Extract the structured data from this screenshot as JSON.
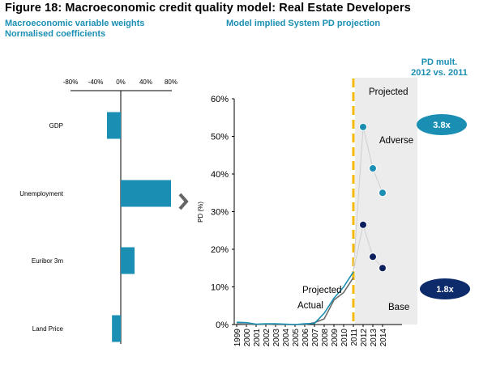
{
  "figure": {
    "title": "Figure 18: Macroeconomic credit quality model: Real Estate Developers",
    "left_subtitle_1": "Macroeconomic variable weights",
    "left_subtitle_2": "Normalised coefficients",
    "right_subtitle": "Model implied System PD projection",
    "pd_mult_line1": "PD mult.",
    "pd_mult_line2": "2012 vs. 2011"
  },
  "chart_data": [
    {
      "type": "bar",
      "orientation": "horizontal",
      "categories": [
        "GDP",
        "Unemployment",
        "Euribor 3m",
        "Land Price"
      ],
      "values": [
        -22,
        80,
        22,
        -14
      ],
      "xlim": [
        -80,
        80
      ],
      "xticks": [
        "-80%",
        "-40%",
        "0%",
        "40%",
        "80%"
      ],
      "xtick_values": [
        -80,
        -40,
        0,
        40,
        80
      ],
      "bar_color": "#1b8fb3",
      "grid": false
    },
    {
      "type": "line",
      "ylabel": "PD (%)",
      "ylim": [
        0,
        60
      ],
      "yticks": [
        "0%",
        "10%",
        "20%",
        "30%",
        "40%",
        "50%",
        "60%"
      ],
      "ytick_values": [
        0,
        10,
        20,
        30,
        40,
        50,
        60
      ],
      "x_categories": [
        "1999",
        "2000",
        "2001",
        "2002",
        "2003",
        "2004",
        "2005",
        "2006",
        "2007",
        "2008",
        "2009",
        "2010",
        "2011",
        "2012",
        "2013",
        "2014"
      ],
      "series": [
        {
          "name": "Actual",
          "color": "#6d6d6d",
          "x": [
            "1999",
            "2000",
            "2001",
            "2002",
            "2003",
            "2004",
            "2005",
            "2006",
            "2007",
            "2008",
            "2009",
            "2010",
            "2011"
          ],
          "values": [
            0.2,
            0.1,
            0.0,
            0.1,
            0.0,
            0.0,
            0.0,
            0.0,
            0.5,
            1.5,
            6.5,
            8.5,
            12.5
          ]
        },
        {
          "name": "Projected",
          "color": "#1b8fb3",
          "x": [
            "1999",
            "2000",
            "2001",
            "2002",
            "2003",
            "2004",
            "2005",
            "2006",
            "2007",
            "2008",
            "2009",
            "2010",
            "2011"
          ],
          "values": [
            0.6,
            0.5,
            0.1,
            0.2,
            0.2,
            0.1,
            0.0,
            0.2,
            0.3,
            3.0,
            7.0,
            10.0,
            14.0
          ]
        },
        {
          "name": "Adverse",
          "color": "#1b8fb3",
          "x": [
            "2011",
            "2012",
            "2013",
            "2014"
          ],
          "values": [
            14.0,
            52.5,
            41.5,
            35.0
          ]
        },
        {
          "name": "Base",
          "color": "#0d1f5c",
          "x": [
            "2011",
            "2012",
            "2013",
            "2014"
          ],
          "values": [
            14.0,
            26.5,
            18.0,
            15.0
          ]
        }
      ],
      "annotations": {
        "projected_region_label": "Projected",
        "projected_region_start": "2011",
        "adverse_label": "Adverse",
        "base_label": "Base",
        "projected_line_label": "Projected",
        "actual_line_label": "Actual",
        "adverse_multiplier": "3.8x",
        "base_multiplier": "1.8x",
        "adverse_badge_color": "#1b8fb3",
        "base_badge_color": "#0d2a6b",
        "divider_color": "#f5b800",
        "shaded_region_color": "#ececec"
      }
    }
  ]
}
